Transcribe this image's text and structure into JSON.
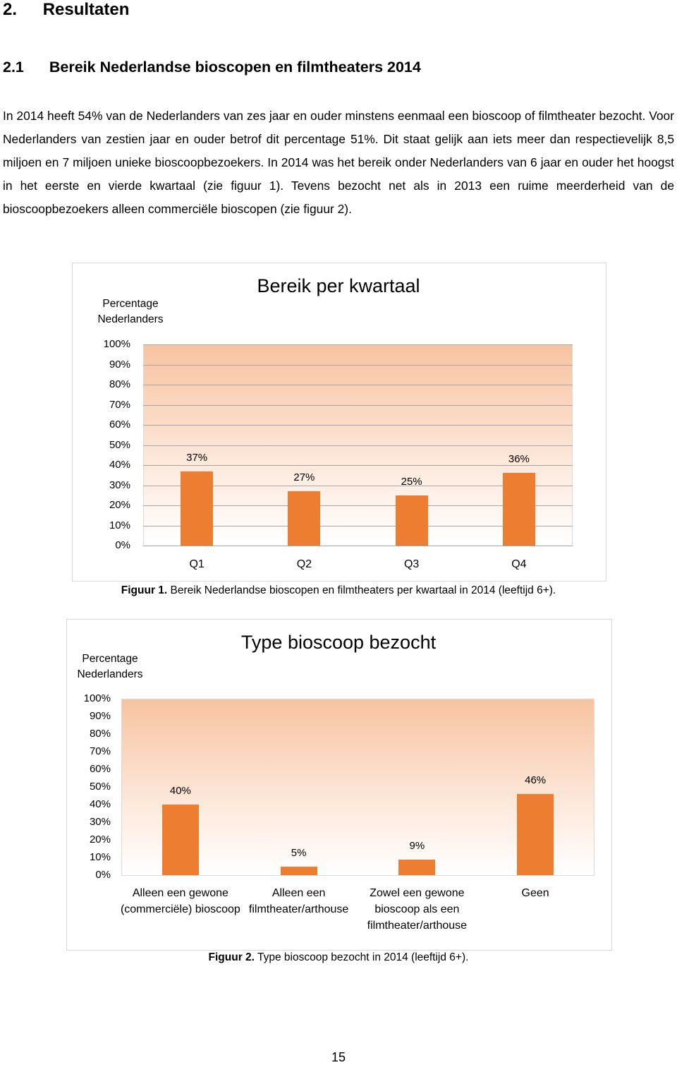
{
  "heading_number": "2.",
  "heading": "Resultaten",
  "section_number": "2.1",
  "section": "Bereik Nederlandse bioscopen en filmtheaters 2014",
  "paragraph": "In 2014 heeft 54% van de Nederlanders van zes jaar en ouder minstens eenmaal een bioscoop of filmtheater bezocht. Voor Nederlanders van zestien jaar en ouder betrof dit percentage 51%. Dit staat gelijk aan iets meer dan respectievelijk 8,5 miljoen en 7 miljoen unieke bioscoopbezoekers. In 2014 was het bereik onder Nederlanders van 6 jaar en ouder het hoogst in het eerste en vierde kwartaal (zie figuur 1). Tevens bezocht net als in 2013 een ruime meerderheid van de bioscoopbezoekers alleen commerciële bioscopen (zie figuur 2).",
  "chart_data": [
    {
      "type": "bar",
      "title": "Bereik per kwartaal",
      "y_label": "Percentage Nederlanders",
      "categories": [
        "Q1",
        "Q2",
        "Q3",
        "Q4"
      ],
      "values": [
        37,
        27,
        25,
        36
      ],
      "value_labels": [
        "37%",
        "27%",
        "25%",
        "36%"
      ],
      "color": "#ed7d31",
      "ylim": [
        0,
        100
      ],
      "yticks": [
        {
          "value": 0,
          "label": "0%"
        },
        {
          "value": 10,
          "label": "10%"
        },
        {
          "value": 20,
          "label": "20%"
        },
        {
          "value": 30,
          "label": "30%"
        },
        {
          "value": 40,
          "label": "40%"
        },
        {
          "value": 50,
          "label": "50%"
        },
        {
          "value": 60,
          "label": "60%"
        },
        {
          "value": 70,
          "label": "70%"
        },
        {
          "value": 80,
          "label": "80%"
        },
        {
          "value": 90,
          "label": "90%"
        },
        {
          "value": 100,
          "label": "100%"
        }
      ],
      "grid": true
    },
    {
      "type": "bar",
      "title": "Type bioscoop bezocht",
      "y_label": "Percentage Nederlanders",
      "categories": [
        "Alleen een gewone (commerciële) bioscoop",
        "Alleen een filmtheater/arthouse",
        "Zowel een gewone bioscoop als een filmtheater/arthouse",
        "Geen"
      ],
      "values": [
        40,
        5,
        9,
        46
      ],
      "value_labels": [
        "40%",
        "5%",
        "9%",
        "46%"
      ],
      "color": "#ed7d31",
      "ylim": [
        0,
        100
      ],
      "yticks": [
        {
          "value": 0,
          "label": "0%"
        },
        {
          "value": 10,
          "label": "10%"
        },
        {
          "value": 20,
          "label": "20%"
        },
        {
          "value": 30,
          "label": "30%"
        },
        {
          "value": 40,
          "label": "40%"
        },
        {
          "value": 50,
          "label": "50%"
        },
        {
          "value": 60,
          "label": "60%"
        },
        {
          "value": 70,
          "label": "70%"
        },
        {
          "value": 80,
          "label": "80%"
        },
        {
          "value": 90,
          "label": "90%"
        },
        {
          "value": 100,
          "label": "100%"
        }
      ],
      "grid": false
    }
  ],
  "captions": [
    {
      "label": "Figuur 1.",
      "text": "Bereik Nederlandse bioscopen en filmtheaters per kwartaal in 2014 (leeftijd 6+)."
    },
    {
      "label": "Figuur 2.",
      "text": "Type bioscoop bezocht in 2014 (leeftijd 6+)."
    }
  ],
  "page_number": "15"
}
